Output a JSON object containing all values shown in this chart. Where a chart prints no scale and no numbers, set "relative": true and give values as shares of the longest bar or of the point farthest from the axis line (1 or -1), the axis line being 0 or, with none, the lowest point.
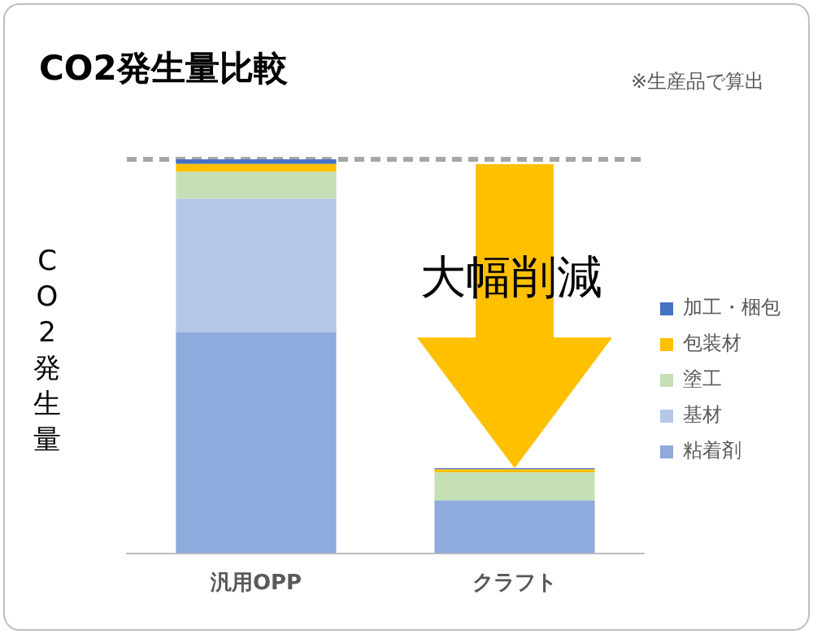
{
  "chart_data": {
    "type": "bar",
    "title": "CO2発生量比較",
    "ylabel": "CO2発生量",
    "relative": true,
    "stacked": true,
    "legend": "right",
    "annotations": [
      "※生産品で算出",
      "大幅削減"
    ],
    "categories": [
      "汎用OPP",
      "クラフト"
    ],
    "series": [
      {
        "name": "粘着剤",
        "color": "#8faadc",
        "values": [
          0.561,
          0.134
        ]
      },
      {
        "name": "基材",
        "color": "#b4c7e7",
        "values": [
          0.339,
          0
        ]
      },
      {
        "name": "塗工",
        "color": "#c5e0b4",
        "values": [
          0.068,
          0.072
        ]
      },
      {
        "name": "包装材",
        "color": "#ffc000",
        "values": [
          0.02,
          0.007
        ]
      },
      {
        "name": "加工・梱包",
        "color": "#4472c4",
        "values": [
          0.012,
          0.003
        ]
      }
    ],
    "ref_lines": [
      {
        "axis": "y",
        "value": 1,
        "color": "#a6a6a6",
        "line_style": "dashed"
      }
    ]
  }
}
